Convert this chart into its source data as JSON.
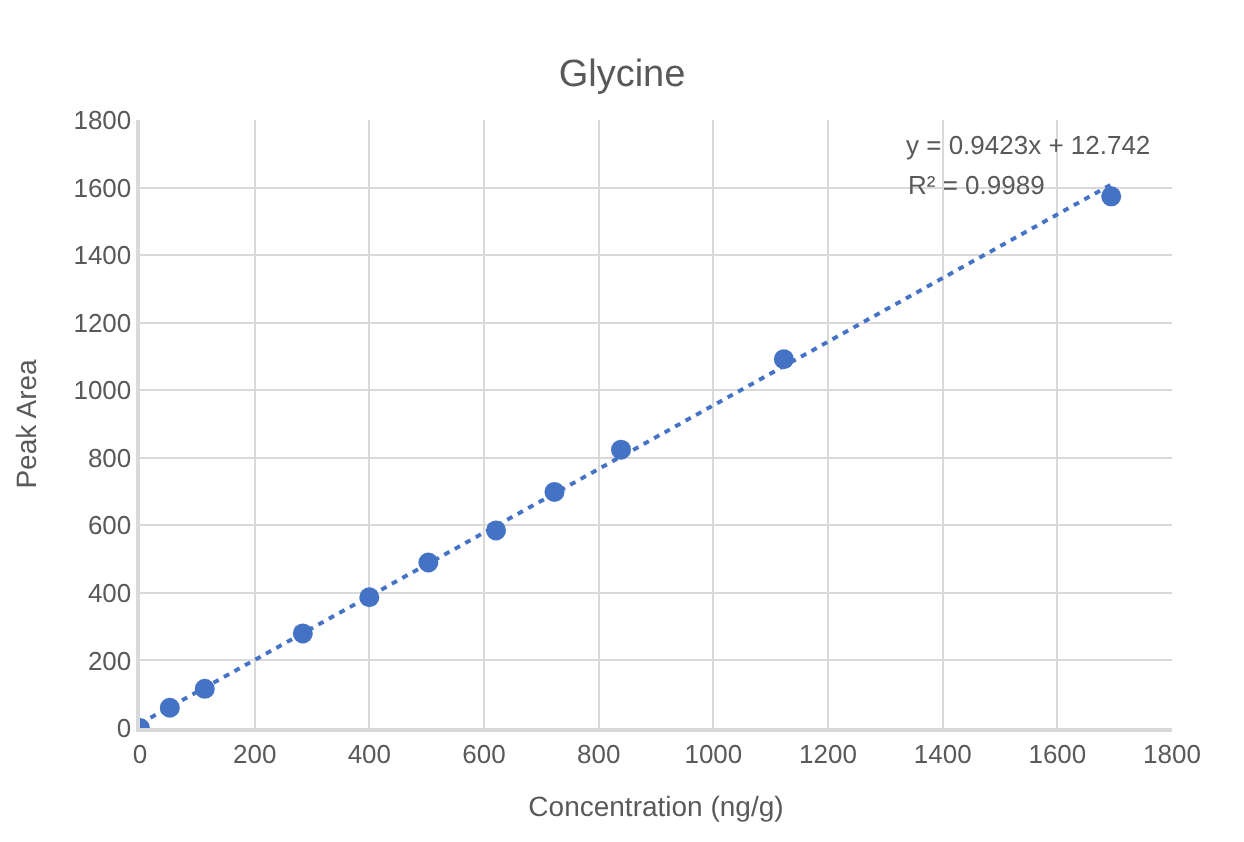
{
  "chart_data": {
    "type": "scatter",
    "title": "Glycine",
    "xlabel": "Concentration (ng/g)",
    "ylabel": "Peak Area",
    "series": [
      {
        "color": "#4472c4",
        "marker": "circle",
        "x": [
          0,
          52,
          113,
          284,
          400,
          503,
          621,
          723,
          839,
          1123,
          1694
        ],
        "values": [
          0,
          60,
          116,
          280,
          387,
          490,
          585,
          699,
          824,
          1092,
          1574
        ]
      },
      {
        "type": "line",
        "color": "#4472c4",
        "marker": "none",
        "line_style": "dotted",
        "x": [
          0,
          1694
        ],
        "values": [
          13,
          1609
        ]
      }
    ],
    "xlim": [
      0,
      1800
    ],
    "xticks": [
      0,
      200,
      400,
      600,
      800,
      1000,
      1200,
      1400,
      1600,
      1800
    ],
    "ylim": [
      0,
      1800
    ],
    "yticks": [
      0,
      200,
      400,
      600,
      800,
      1000,
      1200,
      1400,
      1600,
      1800
    ],
    "grid": true,
    "annotations": [
      "y = 0.9423x + 12.742",
      "R² = 0.9989"
    ]
  }
}
